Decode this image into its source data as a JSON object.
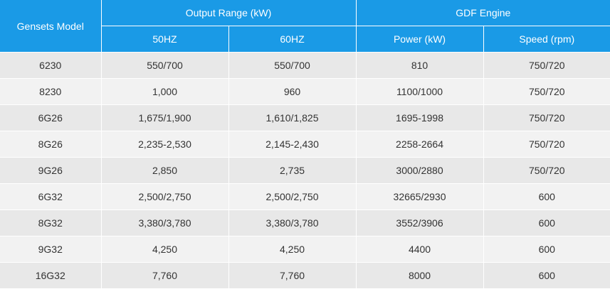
{
  "header": {
    "model_label": "Gensets Model",
    "output_range_label": "Output Range (kW)",
    "engine_label": "GDF Engine",
    "col_50hz": "50HZ",
    "col_60hz": "60HZ",
    "col_power": "Power (kW)",
    "col_speed": "Speed (rpm)"
  },
  "rows": [
    {
      "model": "6230",
      "hz50": "550/700",
      "hz60": "550/700",
      "power": "810",
      "speed": "750/720"
    },
    {
      "model": "8230",
      "hz50": "1,000",
      "hz60": "960",
      "power": "1100/1000",
      "speed": "750/720"
    },
    {
      "model": "6G26",
      "hz50": "1,675/1,900",
      "hz60": "1,610/1,825",
      "power": "1695-1998",
      "speed": "750/720"
    },
    {
      "model": "8G26",
      "hz50": "2,235-2,530",
      "hz60": "2,145-2,430",
      "power": "2258-2664",
      "speed": "750/720"
    },
    {
      "model": "9G26",
      "hz50": "2,850",
      "hz60": "2,735",
      "power": "3000/2880",
      "speed": "750/720"
    },
    {
      "model": "6G32",
      "hz50": "2,500/2,750",
      "hz60": "2,500/2,750",
      "power": "32665/2930",
      "speed": "600"
    },
    {
      "model": "8G32",
      "hz50": "3,380/3,780",
      "hz60": "3,380/3,780",
      "power": "3552/3906",
      "speed": "600"
    },
    {
      "model": "9G32",
      "hz50": "4,250",
      "hz60": "4,250",
      "power": "4400",
      "speed": "600"
    },
    {
      "model": "16G32",
      "hz50": "7,760",
      "hz60": "7,760",
      "power": "8000",
      "speed": "600"
    }
  ]
}
